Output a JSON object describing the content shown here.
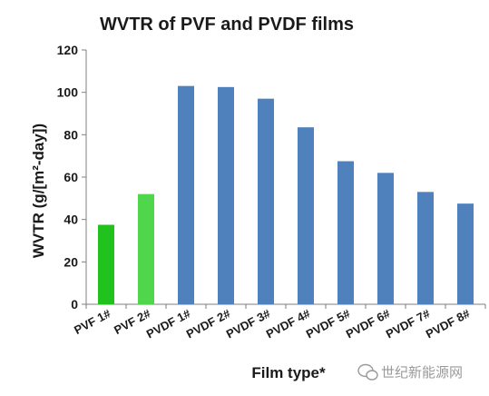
{
  "chart_data": {
    "type": "bar",
    "title": "WVTR of PVF and PVDF films",
    "xlabel": "Film type*",
    "ylabel": "WVTR (g/[m²-day])",
    "categories": [
      "PVF 1#",
      "PVF 2#",
      "PVDF 1#",
      "PVDF 2#",
      "PVDF 3#",
      "PVDF 4#",
      "PVDF 5#",
      "PVDF 6#",
      "PVDF 7#",
      "PVDF 8#"
    ],
    "values": [
      37.5,
      52,
      103,
      102.5,
      97,
      83.5,
      67.5,
      62,
      53,
      47.5
    ],
    "bar_colors": [
      "#22c21e",
      "#4fd64a",
      "#4f81bd",
      "#4f81bd",
      "#4f81bd",
      "#4f81bd",
      "#4f81bd",
      "#4f81bd",
      "#4f81bd",
      "#4f81bd"
    ],
    "ylim": [
      0,
      120
    ],
    "yticks": [
      0,
      20,
      40,
      60,
      80,
      100,
      120
    ],
    "grid": false,
    "legend": "none"
  },
  "watermark": {
    "text": "世纪新能源网",
    "icon": "wechat-icon"
  }
}
